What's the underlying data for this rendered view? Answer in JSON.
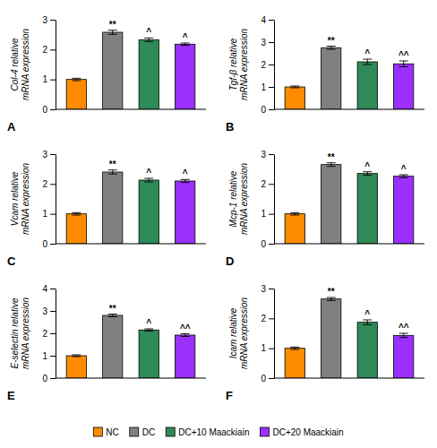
{
  "chart_data": [
    {
      "type": "bar",
      "title": "A",
      "ylabel": "Col-4 relative\nmRNA expression",
      "categories": [
        "NC",
        "DC",
        "DC+10 Maackiain",
        "DC+20 Maackiain"
      ],
      "colors": [
        "#FF8C00",
        "#808080",
        "#2E8B57",
        "#9B30FF"
      ],
      "values": [
        1.0,
        2.58,
        2.33,
        2.18
      ],
      "errors": [
        0.04,
        0.07,
        0.06,
        0.04
      ],
      "annotations": [
        null,
        "**",
        "^",
        "^"
      ],
      "ylim": [
        0,
        3
      ],
      "yticks": [
        0,
        1,
        2,
        3
      ],
      "tick_labels": "y",
      "legend": "bottom"
    },
    {
      "type": "bar",
      "title": "B",
      "ylabel": "Tgf-β relative\nmRNA expression",
      "categories": [
        "NC",
        "DC",
        "DC+10 Maackiain",
        "DC+20 Maackiain"
      ],
      "colors": [
        "#FF8C00",
        "#808080",
        "#2E8B57",
        "#9B30FF"
      ],
      "values": [
        1.0,
        2.75,
        2.12,
        2.03
      ],
      "errors": [
        0.04,
        0.07,
        0.12,
        0.13
      ],
      "annotations": [
        null,
        "**",
        "^",
        "^^"
      ],
      "ylim": [
        0,
        4
      ],
      "yticks": [
        0,
        1,
        2,
        3,
        4
      ],
      "tick_labels": "y"
    },
    {
      "type": "bar",
      "title": "C",
      "ylabel": "Vcam relative\nmRNA expression",
      "categories": [
        "NC",
        "DC",
        "DC+10 Maackiain",
        "DC+20 Maackiain"
      ],
      "colors": [
        "#FF8C00",
        "#808080",
        "#2E8B57",
        "#9B30FF"
      ],
      "values": [
        1.0,
        2.4,
        2.13,
        2.1
      ],
      "errors": [
        0.04,
        0.07,
        0.06,
        0.05
      ],
      "annotations": [
        null,
        "**",
        "^",
        "^"
      ],
      "ylim": [
        0,
        3
      ],
      "yticks": [
        0,
        1,
        2,
        3
      ],
      "tick_labels": "y"
    },
    {
      "type": "bar",
      "title": "D",
      "ylabel": "Mcp-1 relative\nmRNA expression",
      "categories": [
        "NC",
        "DC",
        "DC+10 Maackiain",
        "DC+20 Maackiain"
      ],
      "colors": [
        "#FF8C00",
        "#808080",
        "#2E8B57",
        "#9B30FF"
      ],
      "values": [
        1.0,
        2.65,
        2.35,
        2.26
      ],
      "errors": [
        0.04,
        0.06,
        0.06,
        0.05
      ],
      "annotations": [
        null,
        "**",
        "^",
        "^"
      ],
      "ylim": [
        0,
        3
      ],
      "yticks": [
        0,
        1,
        2,
        3
      ],
      "tick_labels": "y"
    },
    {
      "type": "bar",
      "title": "E",
      "ylabel": "E-selectin relative\nmRNA expression",
      "categories": [
        "NC",
        "DC",
        "DC+10 Maackiain",
        "DC+20 Maackiain"
      ],
      "colors": [
        "#FF8C00",
        "#808080",
        "#2E8B57",
        "#9B30FF"
      ],
      "values": [
        1.0,
        2.8,
        2.15,
        1.92
      ],
      "errors": [
        0.04,
        0.06,
        0.05,
        0.06
      ],
      "annotations": [
        null,
        "**",
        "^",
        "^^"
      ],
      "ylim": [
        0,
        4
      ],
      "yticks": [
        0,
        1,
        2,
        3,
        4
      ],
      "tick_labels": "y"
    },
    {
      "type": "bar",
      "title": "F",
      "ylabel": "Icam relative\nmRNA expression",
      "categories": [
        "NC",
        "DC",
        "DC+10 Maackiain",
        "DC+20 Maackiain"
      ],
      "colors": [
        "#FF8C00",
        "#808080",
        "#2E8B57",
        "#9B30FF"
      ],
      "values": [
        1.0,
        2.65,
        1.87,
        1.43
      ],
      "errors": [
        0.04,
        0.05,
        0.08,
        0.07
      ],
      "annotations": [
        null,
        "**",
        "^",
        "^^"
      ],
      "ylim": [
        0,
        3
      ],
      "yticks": [
        0,
        1,
        2,
        3
      ],
      "tick_labels": "y"
    }
  ]
}
